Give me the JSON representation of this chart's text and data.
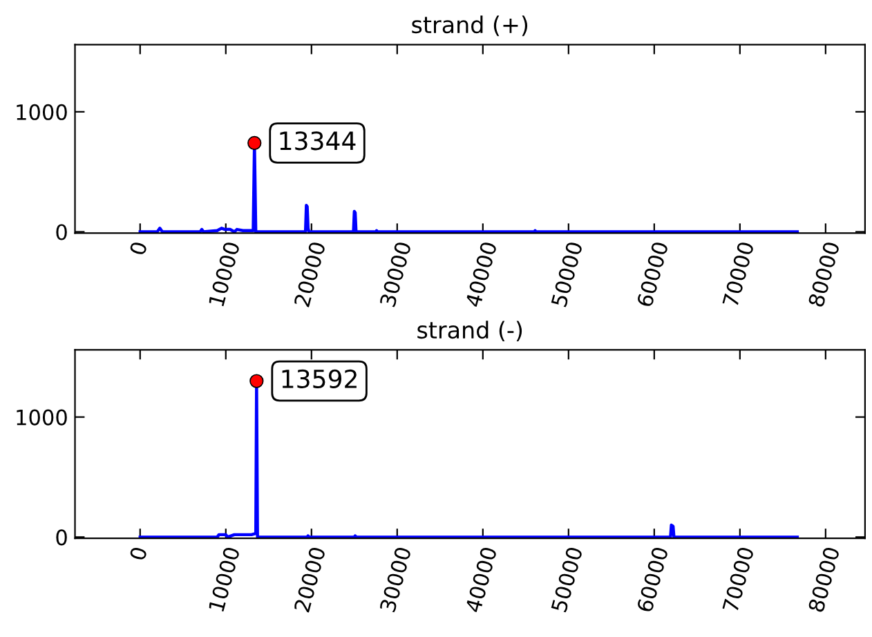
{
  "chart_data": [
    {
      "type": "line",
      "title": "strand (+)",
      "xlim": [
        -7600,
        84600
      ],
      "ylim": [
        -10,
        1560
      ],
      "xticks": [
        0,
        10000,
        20000,
        30000,
        40000,
        50000,
        60000,
        70000,
        80000
      ],
      "yticks": [
        0,
        1000
      ],
      "grid": false,
      "annotations": [
        {
          "text": "13344",
          "x": 13344,
          "y": 740
        }
      ],
      "series": [
        {
          "color": "#0000ff",
          "x": [
            0,
            2000,
            2300,
            2600,
            5000,
            7000,
            7200,
            7400,
            9000,
            9500,
            9900,
            10500,
            11000,
            11300,
            12000,
            13200,
            13344,
            13500,
            19300,
            19400,
            19500,
            19600,
            19700,
            24900,
            25000,
            25100,
            25200,
            27500,
            27600,
            27700,
            46000,
            46100,
            46200,
            76700
          ],
          "values": [
            0,
            0,
            30,
            0,
            0,
            0,
            20,
            0,
            10,
            30,
            20,
            20,
            0,
            20,
            10,
            10,
            740,
            0,
            0,
            220,
            210,
            30,
            0,
            0,
            170,
            160,
            0,
            0,
            10,
            0,
            0,
            10,
            0,
            0
          ]
        },
        {
          "type": "scatter",
          "color": "#ff0000",
          "x": [
            13344
          ],
          "values": [
            740
          ]
        }
      ]
    },
    {
      "type": "line",
      "title": "strand (-)",
      "xlim": [
        -7600,
        84600
      ],
      "ylim": [
        -10,
        1560
      ],
      "xticks": [
        0,
        10000,
        20000,
        30000,
        40000,
        50000,
        60000,
        70000,
        80000
      ],
      "yticks": [
        0,
        1000
      ],
      "grid": false,
      "annotations": [
        {
          "text": "13592",
          "x": 13592,
          "y": 1300
        }
      ],
      "series": [
        {
          "color": "#0000ff",
          "x": [
            0,
            9000,
            9200,
            10000,
            10200,
            11000,
            11200,
            12500,
            13000,
            13500,
            13592,
            13700,
            19500,
            19600,
            19700,
            25000,
            25100,
            25200,
            61900,
            62000,
            62200,
            62300,
            76700
          ],
          "values": [
            0,
            0,
            20,
            20,
            0,
            20,
            20,
            20,
            20,
            30,
            1300,
            0,
            0,
            10,
            0,
            0,
            10,
            0,
            0,
            100,
            90,
            0,
            0
          ]
        },
        {
          "type": "scatter",
          "color": "#ff0000",
          "x": [
            13592
          ],
          "values": [
            1300
          ]
        }
      ]
    }
  ]
}
